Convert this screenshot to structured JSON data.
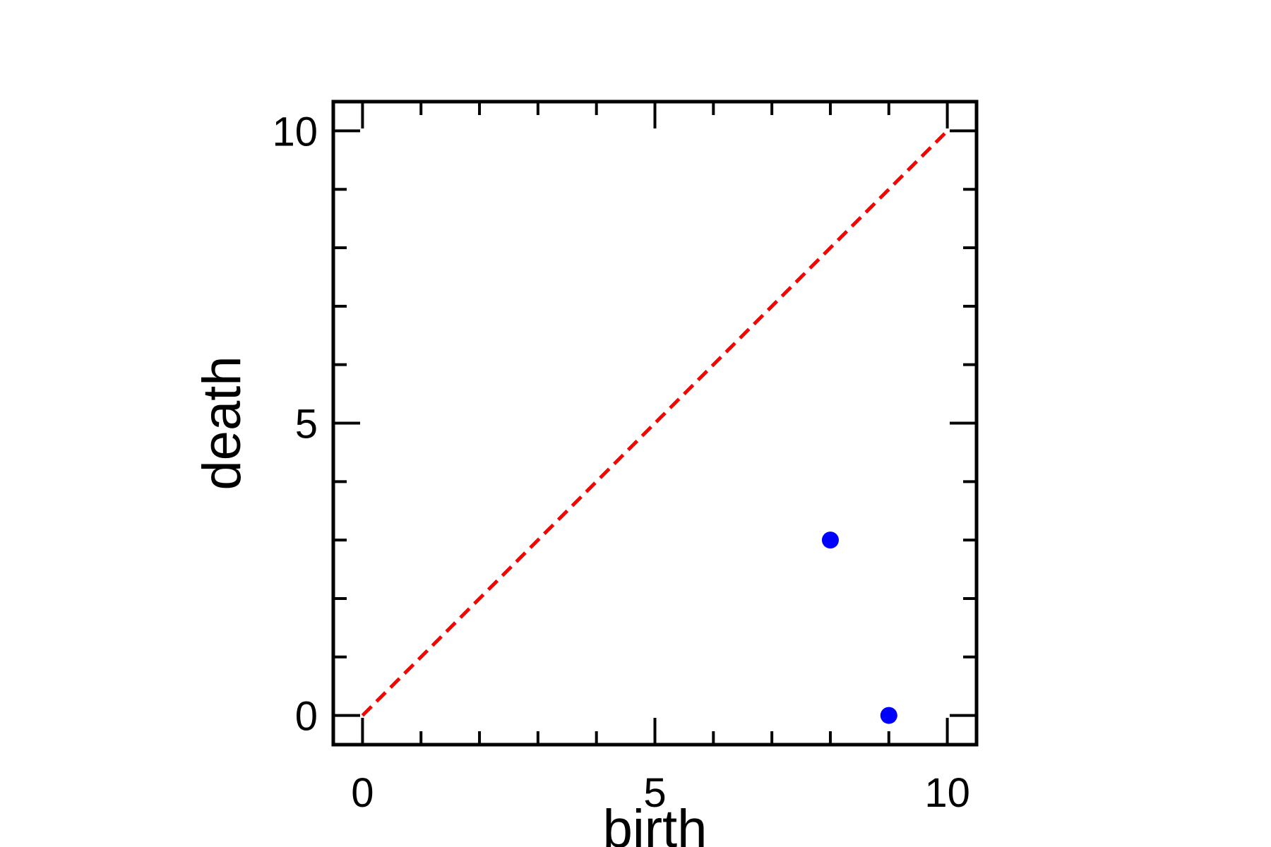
{
  "chart_data": {
    "type": "scatter",
    "title": "",
    "xlabel": "birth",
    "ylabel": "death",
    "xlim": [
      -0.5,
      10.5
    ],
    "ylim": [
      -0.5,
      10.5
    ],
    "x_ticks": [
      0,
      5,
      10
    ],
    "y_ticks": [
      0,
      5,
      10
    ],
    "x_tick_labels": [
      "0",
      "5",
      "10"
    ],
    "y_tick_labels": [
      "0",
      "5",
      "10"
    ],
    "minor_tick_step": 1,
    "grid": false,
    "series": [
      {
        "points": [
          {
            "x": 8,
            "y": 3
          },
          {
            "x": 9,
            "y": 0
          }
        ],
        "color": "#0000ff",
        "marker": "circle"
      }
    ],
    "reference_line": {
      "style": "dashed",
      "color": "#ff0000",
      "from": {
        "x": 0,
        "y": 0
      },
      "to": {
        "x": 10,
        "y": 10
      }
    }
  }
}
